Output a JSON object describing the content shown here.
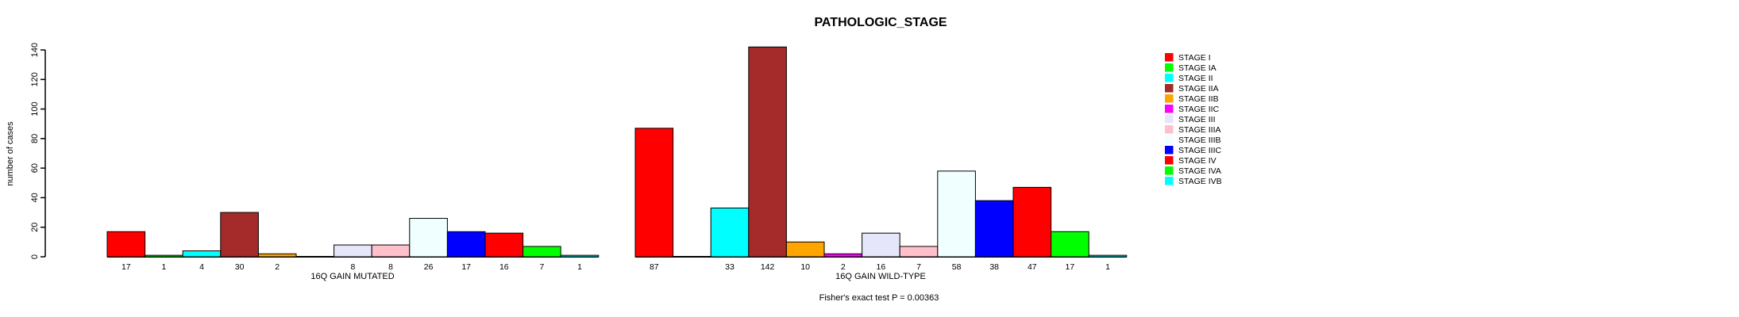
{
  "chart_data": {
    "type": "bar",
    "title": "PATHOLOGIC_STAGE",
    "ylabel": "number of cases",
    "xlabel": "",
    "ylim": [
      0,
      140
    ],
    "yticks": [
      0,
      20,
      40,
      60,
      80,
      100,
      120,
      140
    ],
    "grid": false,
    "legend_position": "right",
    "categories": [
      "STAGE I",
      "STAGE IA",
      "STAGE II",
      "STAGE IIA",
      "STAGE IIB",
      "STAGE IIC",
      "STAGE III",
      "STAGE IIIA",
      "STAGE IIIB",
      "STAGE IIIC",
      "STAGE IV",
      "STAGE IVA",
      "STAGE IVB"
    ],
    "colors": [
      "#FF0000",
      "#00FF00",
      "#00FFFF",
      "#A52A2A",
      "#FFA500",
      "#FF00FF",
      "#E6E6FA",
      "#FFC0CB",
      "#F0FFFF",
      "#0000FF",
      "#FF0000",
      "#00FF00",
      "#00FFFF"
    ],
    "groups": [
      {
        "label": "16Q GAIN MUTATED",
        "values": [
          17,
          1,
          4,
          30,
          2,
          null,
          8,
          8,
          26,
          17,
          16,
          7,
          1
        ]
      },
      {
        "label": "16Q GAIN WILD-TYPE",
        "values": [
          87,
          null,
          33,
          142,
          10,
          2,
          16,
          7,
          58,
          38,
          47,
          17,
          1
        ]
      }
    ],
    "annotation": "Fisher's exact test P = 0.00363",
    "axis_color": "#000000",
    "bar_border_color": "#000000"
  }
}
